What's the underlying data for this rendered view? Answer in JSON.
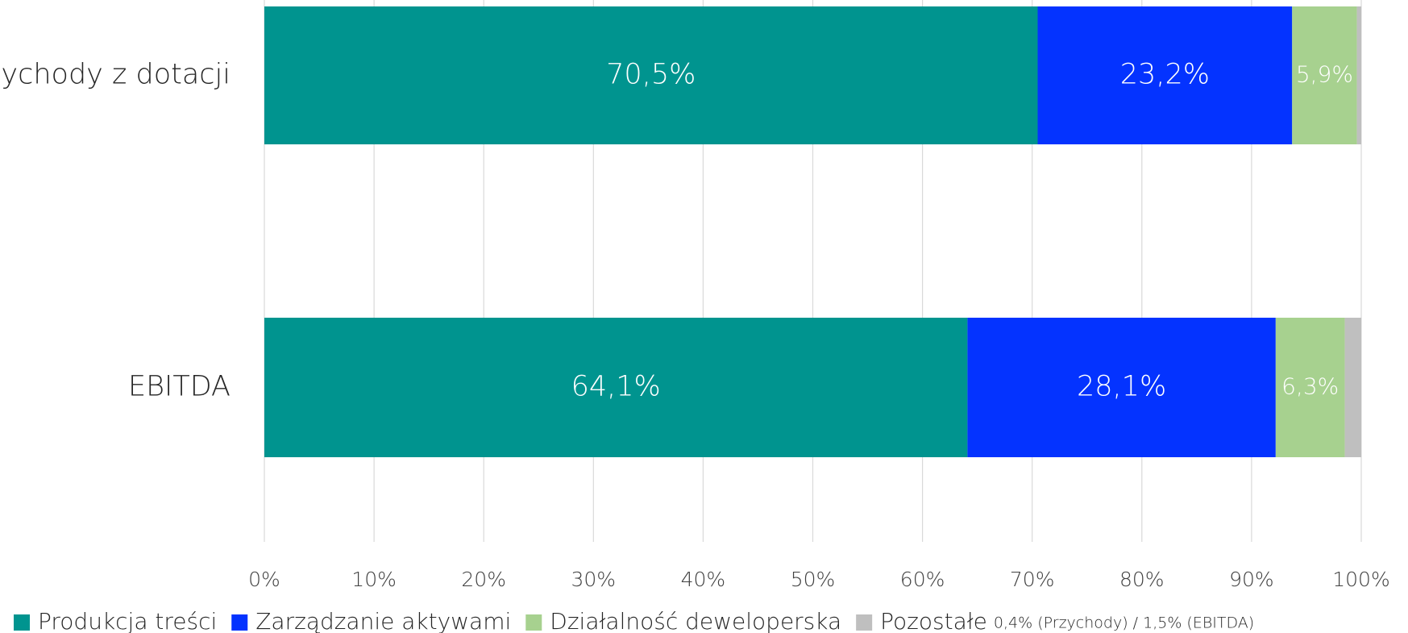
{
  "chart_data": {
    "type": "stacked-bar-horizontal",
    "categories": [
      "Przychody z dotacji",
      "EBITDA"
    ],
    "series": [
      {
        "name": "Produkcja treści",
        "color": "#00948f",
        "values": [
          70.5,
          64.1
        ],
        "value_labels": [
          "70,5%",
          "64,1%"
        ]
      },
      {
        "name": "Zarządzanie aktywami",
        "color": "#0433ff",
        "values": [
          23.2,
          28.1
        ],
        "value_labels": [
          "23,2%",
          "28,1%"
        ]
      },
      {
        "name": "Działalność deweloperska",
        "color": "#a7d18f",
        "values": [
          5.9,
          6.3
        ],
        "value_labels": [
          "5,9%",
          "6,3%"
        ]
      },
      {
        "name": "Pozostałe",
        "color": "#bfbfbf",
        "values": [
          0.4,
          1.5
        ]
      }
    ],
    "legend_note": "0,4% (Przychody) / 1,5% (EBITDA)",
    "xlim": [
      0,
      100
    ],
    "xticks": [
      {
        "value": 0,
        "label": "0%"
      },
      {
        "value": 10,
        "label": "10%"
      },
      {
        "value": 20,
        "label": "20%"
      },
      {
        "value": 30,
        "label": "30%"
      },
      {
        "value": 40,
        "label": "40%"
      },
      {
        "value": 50,
        "label": "50%"
      },
      {
        "value": 60,
        "label": "60%"
      },
      {
        "value": 70,
        "label": "70%"
      },
      {
        "value": 80,
        "label": "80%"
      },
      {
        "value": 90,
        "label": "90%"
      },
      {
        "value": 100,
        "label": "100%"
      }
    ],
    "grid": true,
    "legend": "bottom"
  }
}
